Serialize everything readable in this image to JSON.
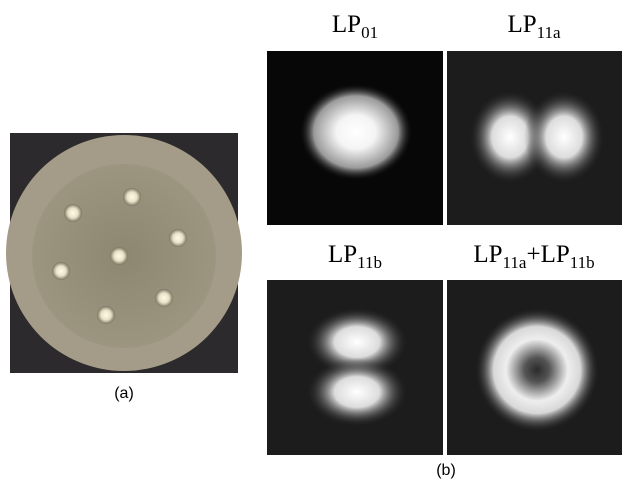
{
  "panel_a": {
    "label": "(a)"
  },
  "panel_b": {
    "label": "(b)",
    "modes": [
      {
        "title": [
          {
            "text": "LP"
          },
          {
            "text": "01",
            "sub": true
          }
        ]
      },
      {
        "title": [
          {
            "text": "LP"
          },
          {
            "text": "11a",
            "sub": true
          }
        ]
      },
      {
        "title": [
          {
            "text": "LP"
          },
          {
            "text": "11b",
            "sub": true
          }
        ]
      },
      {
        "title": [
          {
            "text": "LP"
          },
          {
            "text": "11a",
            "sub": true
          },
          {
            "text": "+LP"
          },
          {
            "text": "11b",
            "sub": true
          }
        ]
      }
    ]
  }
}
